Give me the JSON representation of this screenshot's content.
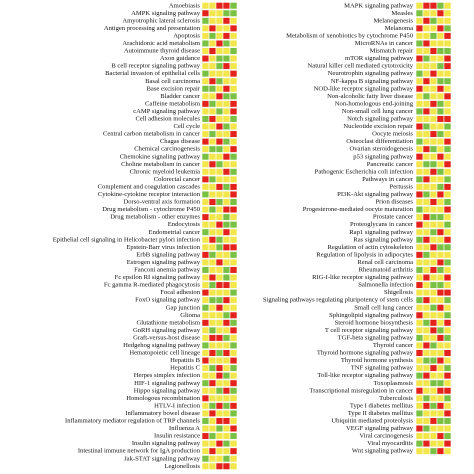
{
  "palette": {
    "r": "#e3231b",
    "g": "#7ac143",
    "y": "#f3e64a"
  },
  "left": [
    {
      "label": "Amoebiasis",
      "cells": "yyrrg"
    },
    {
      "label": "AMPK signaling pathway",
      "cells": "ryygg"
    },
    {
      "label": "Amyotrophic lateral sclerosis",
      "cells": "gyyry"
    },
    {
      "label": "Antigen processing and presentation",
      "cells": "yryyr"
    },
    {
      "label": "Apoptosis",
      "cells": "ygyry"
    },
    {
      "label": "Arachidonic acid metabolism",
      "cells": "gyrgy"
    },
    {
      "label": "Autoimmune thyroid disease",
      "cells": "yryyg"
    },
    {
      "label": "Axon guidance",
      "cells": "ryggy"
    },
    {
      "label": "B cell receptor signaling pathway",
      "cells": "yygry"
    },
    {
      "label": "Bacterial invasion of epithelial cells",
      "cells": "gyyyr"
    },
    {
      "label": "Basal cell carcinoma",
      "cells": "yrgyy"
    },
    {
      "label": "Base excision repair",
      "cells": "ggyry"
    },
    {
      "label": "Bladder cancer",
      "cells": "yyrgg"
    },
    {
      "label": "Caffeine metabolism",
      "cells": "rgyyr"
    },
    {
      "label": "cAMP signaling pathway",
      "cells": "yygyr"
    },
    {
      "label": "Cell adhesion molecules",
      "cells": "gryyg"
    },
    {
      "label": "Cell cycle",
      "cells": "yyrgy"
    },
    {
      "label": "Central carbon metabolism in cancer",
      "cells": "ygyyr"
    },
    {
      "label": "Chagas disease",
      "cells": "ryrgy"
    },
    {
      "label": "Chemical carcinogenesis",
      "cells": "yggyr"
    },
    {
      "label": "Chemokine signaling pathway",
      "cells": "gyyrg"
    },
    {
      "label": "Choline metabolism in cancer",
      "cells": "yrgyy"
    },
    {
      "label": "Chronic myeloid leukemia",
      "cells": "yyyrg"
    },
    {
      "label": "Colorectal cancer",
      "cells": "rgyyy"
    },
    {
      "label": "Complement and coagulation cascades",
      "cells": "yyrgr"
    },
    {
      "label": "Cytokine-cytokine receptor interaction",
      "cells": "gyyyr"
    },
    {
      "label": "Dorso-ventral axis formation",
      "cells": "yrgyg"
    },
    {
      "label": "Drug metabolism - cytochrome P450",
      "cells": "ygyrr"
    },
    {
      "label": "Drug metabolism - other enzymes",
      "cells": "ryygy"
    },
    {
      "label": "Endocytosis",
      "cells": "yyrgg"
    },
    {
      "label": "Endometrial cancer",
      "cells": "gyyry"
    },
    {
      "label": "Epithelial cell signaling in Helicobacter pylori infection",
      "cells": "yrgyy"
    },
    {
      "label": "Epstein-Barr virus infection",
      "cells": "yygrr"
    },
    {
      "label": "ErbB signaling pathway",
      "cells": "rgyyg"
    },
    {
      "label": "Estrogen signaling pathway",
      "cells": "yyryy"
    },
    {
      "label": "Fanconi anemia pathway",
      "cells": "gyygr"
    },
    {
      "label": "Fc epsilon RI signaling pathway",
      "cells": "yrygy"
    },
    {
      "label": "Fc gamma R-mediated phagocytosis",
      "cells": "ygrry"
    },
    {
      "label": "Focal adhesion",
      "cells": "ryyyg"
    },
    {
      "label": "FoxO signaling pathway",
      "cells": "yggry"
    },
    {
      "label": "Gap junction",
      "cells": "gyryy"
    },
    {
      "label": "Glioma",
      "cells": "yyygr"
    },
    {
      "label": "Glutathione metabolism",
      "cells": "ryyrg"
    },
    {
      "label": "GnRH signaling pathway",
      "cells": "ygyyr"
    },
    {
      "label": "Graft-versus-host disease",
      "cells": "yrrgy"
    },
    {
      "label": "Hedgehog signaling pathway",
      "cells": "gyyyg"
    },
    {
      "label": "Hematopoietic cell lineage",
      "cells": "yrgry"
    },
    {
      "label": "Hepatitis B",
      "cells": "ryyyr"
    },
    {
      "label": "Hepatitis C",
      "cells": "ygryg"
    },
    {
      "label": "Herpes simplex infection",
      "cells": "yyrgy"
    },
    {
      "label": "HIF-1 signaling pathway",
      "cells": "gryyr"
    },
    {
      "label": "Hippo signaling pathway",
      "cells": "yygrg"
    },
    {
      "label": "Homologous recombination",
      "cells": "ryyyy"
    },
    {
      "label": "HTLV-I infection",
      "cells": "ygrgr"
    },
    {
      "label": "Inflammatory bowel disease",
      "cells": "yryyg"
    },
    {
      "label": "Inflammatory mediator regulation of TRP channels",
      "cells": "gyrry"
    },
    {
      "label": "Influenza A",
      "cells": "yygyr"
    },
    {
      "label": "Insulin resistance",
      "cells": "rgyyg"
    },
    {
      "label": "Insulin signaling pathway",
      "cells": "yyrgy"
    },
    {
      "label": "Intestinal immune network for IgA production",
      "cells": "yryyr"
    },
    {
      "label": "Jak-STAT signaling pathway",
      "cells": "gyygy"
    },
    {
      "label": "Legionellosis",
      "cells": "yyrry"
    }
  ],
  "right": [
    {
      "label": "MAPK signaling pathway",
      "cells": "yrrgy"
    },
    {
      "label": "Measles",
      "cells": "gyyry"
    },
    {
      "label": "Melanogenesis",
      "cells": "yrgyy"
    },
    {
      "label": "Melanoma",
      "cells": "ryyrg"
    },
    {
      "label": "Metabolism of xenobiotics by cytochrome P450",
      "cells": "yygyr"
    },
    {
      "label": "MicroRNAs in cancer",
      "cells": "gryyy"
    },
    {
      "label": "Mismatch repair",
      "cells": "yyrgg"
    },
    {
      "label": "mTOR signaling pathway",
      "cells": "rgyyr"
    },
    {
      "label": "Natural killer cell mediated cytotoxicity",
      "cells": "yyygr"
    },
    {
      "label": "Neurotrophin signaling pathway",
      "cells": "gyryy"
    },
    {
      "label": "NF-kappa B signaling pathway",
      "cells": "yrygg"
    },
    {
      "label": "NOD-like receptor signaling pathway",
      "cells": "ryyry"
    },
    {
      "label": "Non-alcoholic fatty liver disease",
      "cells": "ygyyr"
    },
    {
      "label": "Non-homologous end-joining",
      "cells": "yyrgy"
    },
    {
      "label": "Non-small cell lung cancer",
      "cells": "grygy"
    },
    {
      "label": "Notch signaling pathway",
      "cells": "yyyrr"
    },
    {
      "label": "Nucleotide excision repair",
      "cells": "rgyyg"
    },
    {
      "label": "Oocyte meiosis",
      "cells": "yyrgy"
    },
    {
      "label": "Osteoclast differentiation",
      "cells": "gyyyr"
    },
    {
      "label": "Ovarian steroidogenesis",
      "cells": "yrgyg"
    },
    {
      "label": "p53 signaling pathway",
      "cells": "ryyry"
    },
    {
      "label": "Pancreatic cancer",
      "cells": "yggyr"
    },
    {
      "label": "Pathogenic Escherichia coli infection",
      "cells": "yyrgy"
    },
    {
      "label": "Pathways in cancer",
      "cells": "gryyg"
    },
    {
      "label": "Pertussis",
      "cells": "yyygr"
    },
    {
      "label": "PI3K-Akt signaling pathway",
      "cells": "rgyry"
    },
    {
      "label": "Prion diseases",
      "cells": "yyryg"
    },
    {
      "label": "Progesterone-mediated oocyte maturation",
      "cells": "gyyyr"
    },
    {
      "label": "Prostate cancer",
      "cells": "yrggy"
    },
    {
      "label": "Proteoglycans in cancer",
      "cells": "ryyyg"
    },
    {
      "label": "Rap1 signaling pathway",
      "cells": "yygry"
    },
    {
      "label": "Ras signaling pathway",
      "cells": "gryyr"
    },
    {
      "label": "Regulation of actin cytoskeleton",
      "cells": "yyrgg"
    },
    {
      "label": "Regulation of lipolysis in adipocytes",
      "cells": "rgyyy"
    },
    {
      "label": "Renal cell carcinoma",
      "cells": "yyyrg"
    },
    {
      "label": "Rheumatoid arthritis",
      "cells": "gyrgy"
    },
    {
      "label": "RIG-I-like receptor signaling pathway",
      "cells": "yryyr"
    },
    {
      "label": "Salmonella infection",
      "cells": "ryggy"
    },
    {
      "label": "Shigellosis",
      "cells": "yyyrr"
    },
    {
      "label": "Signaling pathways regulating pluripotency of stem cells",
      "cells": "gryyg"
    },
    {
      "label": "Small cell lung cancer",
      "cells": "yygry"
    },
    {
      "label": "Sphingolipid signaling pathway",
      "cells": "ryyyg"
    },
    {
      "label": "Steroid hormone biosynthesis",
      "cells": "ygryr"
    },
    {
      "label": "T cell receptor signaling pathway",
      "cells": "yyrgy"
    },
    {
      "label": "TGF-beta signaling pathway",
      "cells": "gyyrg"
    },
    {
      "label": "Thyroid cancer",
      "cells": "yrgyy"
    },
    {
      "label": "Thyroid hormone signaling pathway",
      "cells": "ryyyr"
    },
    {
      "label": "Thyroid hormone synthesis",
      "cells": "yggry"
    },
    {
      "label": "TNF signaling pathway",
      "cells": "yyryg"
    },
    {
      "label": "Toll-like receptor signaling pathway",
      "cells": "gryyr"
    },
    {
      "label": "Toxoplasmosis",
      "cells": "yyggy"
    },
    {
      "label": "Transcriptional misregulation in cancer",
      "cells": "ryyrr"
    },
    {
      "label": "Tuberculosis",
      "cells": "ygyyg"
    },
    {
      "label": "Type I diabetes mellitus",
      "cells": "yrgry"
    },
    {
      "label": "Type II diabetes mellitus",
      "cells": "gyyyr"
    },
    {
      "label": "Ubiquitin mediated proteolysis",
      "cells": "yyrgg"
    },
    {
      "label": "VEGF signaling pathway",
      "cells": "rgyyy"
    },
    {
      "label": "Viral carcinogenesis",
      "cells": "yyyrg"
    },
    {
      "label": "Viral myocarditis",
      "cells": "gryyr"
    },
    {
      "label": "Wnt signaling pathway",
      "cells": "yygry"
    }
  ]
}
